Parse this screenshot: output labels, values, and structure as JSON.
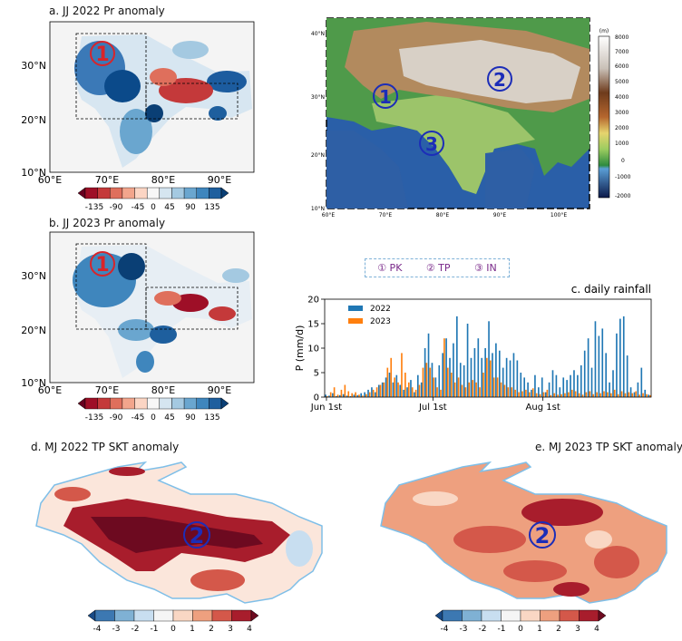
{
  "panels": {
    "a": {
      "title": "a. JJ 2022 Pr anomaly",
      "region_mark": "1"
    },
    "b": {
      "title": "b. JJ 2023 Pr anomaly",
      "region_mark": "1"
    },
    "d": {
      "title": "d. MJ 2022 TP SKT anomaly",
      "region_mark": "2"
    },
    "e": {
      "title": "e. MJ 2023 TP SKT anomaly",
      "region_mark": "2"
    }
  },
  "map_axes": {
    "lat_labels": [
      "30°N",
      "20°N",
      "10°N"
    ],
    "lon_labels": [
      "60°E",
      "70°E",
      "80°E",
      "90°E"
    ]
  },
  "pr_colorbar": {
    "labels": [
      "-135",
      "-90",
      "-45",
      "0",
      "45",
      "90",
      "135"
    ],
    "colors": [
      "#67001f",
      "#9e0f27",
      "#c4393a",
      "#df6f5c",
      "#f2a58c",
      "#fbd5c4",
      "#f7f7f7",
      "#d5e5f0",
      "#a4c9e1",
      "#6aa6cf",
      "#3f86bd",
      "#1e5f9e",
      "#0a3f75"
    ]
  },
  "skt_colorbar": {
    "labels": [
      "-4",
      "-3",
      "-2",
      "-1",
      "0",
      "1",
      "2",
      "3",
      "4"
    ],
    "colors": [
      "#184a86",
      "#3c78b2",
      "#7fb1d4",
      "#c8def0",
      "#f5f5f5",
      "#f9d7c4",
      "#eea07f",
      "#d4584a",
      "#a81d2c",
      "#6d0a20"
    ]
  },
  "topo": {
    "lat_labels": [
      "40°N",
      "30°N",
      "20°N",
      "10°N"
    ],
    "lon_labels": [
      "60°E",
      "70°E",
      "80°E",
      "90°E",
      "100°E"
    ],
    "marks": [
      "1",
      "2",
      "3"
    ],
    "colorbar_unit": "(m)",
    "colorbar_labels": [
      "8000",
      "7000",
      "6000",
      "5000",
      "4000",
      "3000",
      "2000",
      "1000",
      "0",
      "-1000",
      "-2000"
    ]
  },
  "region_legend": {
    "items": [
      "① PK",
      "② TP",
      "③ IN"
    ]
  },
  "chart_data": {
    "type": "bar",
    "title": "c. daily rainfall",
    "ylabel": "P (mm/d)",
    "xlabel": "",
    "ylim": [
      0,
      20
    ],
    "yticks": [
      "0",
      "5",
      "10",
      "15",
      "20"
    ],
    "xtick_labels": [
      "Jun 1st",
      "Jul 1st",
      "Aug 1st"
    ],
    "xtick_days": [
      1,
      31,
      62
    ],
    "colors": {
      "2022": "#1f77b4",
      "2023": "#ff7f0e"
    },
    "series": [
      {
        "name": "2022",
        "values": [
          0.5,
          0.3,
          0.8,
          0.2,
          0.4,
          0.6,
          0.3,
          0.2,
          0.5,
          0.4,
          0.8,
          1.0,
          1.5,
          2.0,
          1.0,
          2.5,
          3.0,
          4.0,
          5.0,
          3.0,
          4.5,
          2.5,
          1.5,
          2.0,
          3.5,
          1.0,
          4.5,
          3.0,
          10.0,
          13.0,
          7.0,
          4.0,
          6.5,
          9.0,
          12.0,
          8.0,
          11.0,
          16.5,
          7.0,
          6.5,
          15.0,
          8.0,
          10.0,
          12.0,
          8.0,
          10.0,
          15.5,
          9.0,
          11.0,
          9.5,
          6.0,
          8.0,
          7.5,
          9.0,
          7.5,
          5.0,
          4.0,
          3.0,
          1.5,
          4.5,
          2.0,
          4.0,
          1.0,
          3.0,
          5.5,
          4.5,
          2.0,
          4.0,
          3.5,
          4.5,
          5.5,
          4.5,
          6.5,
          9.5,
          12.0,
          6.0,
          15.5,
          12.5,
          14.0,
          9.0,
          3.0,
          5.5,
          13.0,
          16.0,
          16.5,
          8.5,
          2.0,
          1.0,
          3.0,
          6.0,
          1.5,
          0.5
        ]
      },
      {
        "name": "2023",
        "values": [
          0.2,
          1.0,
          2.0,
          0.5,
          1.5,
          2.5,
          1.2,
          0.8,
          1.0,
          0.5,
          0.3,
          0.6,
          1.0,
          1.5,
          2.0,
          2.5,
          3.0,
          6.0,
          8.0,
          4.0,
          3.0,
          9.0,
          5.0,
          3.0,
          2.0,
          1.5,
          2.5,
          6.0,
          7.0,
          6.0,
          4.0,
          2.0,
          1.5,
          12.0,
          6.0,
          5.0,
          3.0,
          4.0,
          2.5,
          2.0,
          3.0,
          3.5,
          3.0,
          2.0,
          5.0,
          8.0,
          7.5,
          4.0,
          4.0,
          3.0,
          2.5,
          2.0,
          2.0,
          1.5,
          1.0,
          1.2,
          1.5,
          1.0,
          1.8,
          0.8,
          0.6,
          1.0,
          1.5,
          0.4,
          0.8,
          0.5,
          0.6,
          0.8,
          1.0,
          1.5,
          1.2,
          0.8,
          0.5,
          1.0,
          1.2,
          0.6,
          1.0,
          0.8,
          1.2,
          1.0,
          0.8,
          1.5,
          0.6,
          1.2,
          0.8,
          1.0,
          0.8,
          1.2,
          0.5,
          0.8,
          0.6,
          0.4
        ]
      },
      {
        "name_label_2022": "2022",
        "name_label_2023": "2023"
      }
    ]
  }
}
